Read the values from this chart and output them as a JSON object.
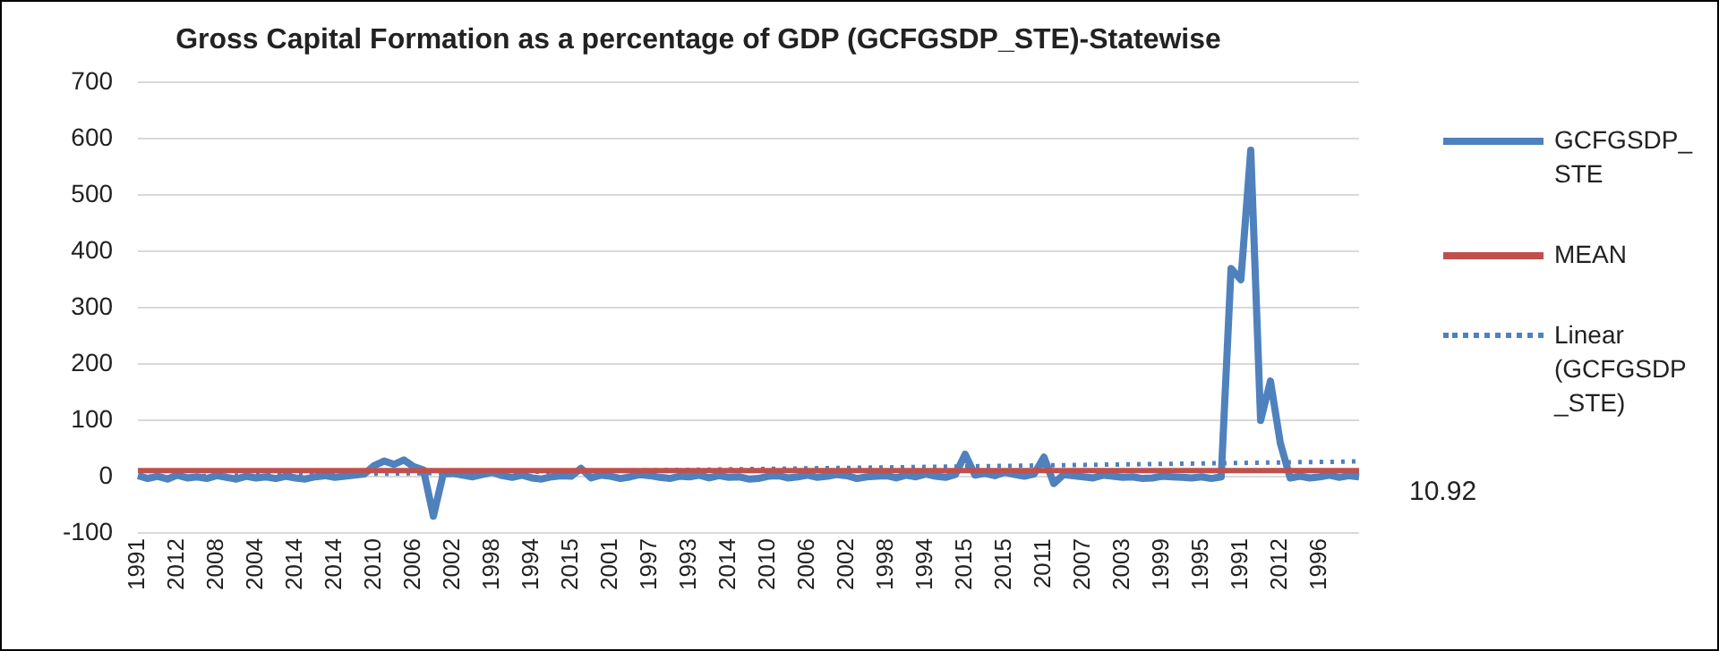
{
  "chart_data": {
    "type": "line",
    "title": "Gross Capital Formation as a percentage of GDP (GCFGSDP_STE)-Statewise",
    "categories": [
      "1991",
      null,
      null,
      null,
      "2012",
      null,
      null,
      null,
      "2008",
      null,
      null,
      null,
      "2004",
      null,
      null,
      null,
      "2014",
      null,
      null,
      null,
      "2014",
      null,
      null,
      null,
      "2010",
      null,
      null,
      null,
      "2006",
      null,
      null,
      null,
      "2002",
      null,
      null,
      null,
      "1998",
      null,
      null,
      null,
      "1994",
      null,
      null,
      null,
      "2015",
      null,
      null,
      null,
      "2001",
      null,
      null,
      null,
      "1997",
      null,
      null,
      null,
      "1993",
      null,
      null,
      null,
      "2014",
      null,
      null,
      null,
      "2010",
      null,
      null,
      null,
      "2006",
      null,
      null,
      null,
      "2002",
      null,
      null,
      null,
      "1998",
      null,
      null,
      null,
      "1994",
      null,
      null,
      null,
      "2015",
      null,
      null,
      null,
      "2015",
      null,
      null,
      null,
      "2011",
      null,
      null,
      null,
      "2007",
      null,
      null,
      null,
      "2003",
      null,
      null,
      null,
      "1999",
      null,
      null,
      null,
      "1995",
      null,
      null,
      null,
      "1991",
      null,
      null,
      null,
      "2012",
      null,
      null,
      null,
      "1996",
      null,
      null,
      null,
      null
    ],
    "series": [
      {
        "name": "GCFGSDP_STE",
        "color": "#4f81bd",
        "values": [
          2,
          -3,
          1,
          -4,
          3,
          -2,
          0,
          -3,
          2,
          -1,
          -4,
          1,
          -2,
          0,
          -3,
          1,
          -2,
          -4,
          0,
          2,
          -1,
          1,
          3,
          5,
          20,
          28,
          22,
          30,
          18,
          12,
          -70,
          5,
          6,
          3,
          0,
          4,
          8,
          2,
          -1,
          3,
          -2,
          -4,
          0,
          2,
          1,
          15,
          -2,
          3,
          1,
          -3,
          0,
          4,
          2,
          -1,
          -3,
          1,
          0,
          3,
          -2,
          2,
          -1,
          0,
          -4,
          -3,
          1,
          2,
          -2,
          0,
          3,
          -1,
          1,
          4,
          2,
          -3,
          0,
          1,
          2,
          -2,
          3,
          0,
          5,
          1,
          -1,
          4,
          40,
          3,
          6,
          2,
          8,
          4,
          1,
          5,
          35,
          -12,
          4,
          2,
          0,
          -2,
          3,
          1,
          -1,
          0,
          -3,
          -2,
          1,
          0,
          -1,
          -2,
          0,
          -3,
          0,
          370,
          350,
          580,
          100,
          170,
          60,
          -2,
          1,
          -2,
          0,
          3,
          -1,
          2,
          0
        ]
      },
      {
        "name": "Linear (GCFGSDP_STE)",
        "color": "#4f81bd",
        "line_style": "dotted",
        "values": [
          0,
          0.2,
          0.4,
          0.7,
          0.9,
          1.1,
          1.3,
          1.5,
          1.8,
          2,
          2.2,
          2.4,
          2.6,
          2.9,
          3.1,
          3.3,
          3.5,
          3.7,
          4,
          4.2,
          4.4,
          4.6,
          4.8,
          5.1,
          5.3,
          5.5,
          5.7,
          5.9,
          6.2,
          6.4,
          6.6,
          6.8,
          7,
          7.3,
          7.5,
          7.7,
          7.9,
          8.1,
          8.4,
          8.6,
          8.8,
          9,
          9.2,
          9.5,
          9.7,
          9.9,
          10.1,
          10.3,
          10.6,
          10.8,
          11,
          11.2,
          11.4,
          11.7,
          11.9,
          12.1,
          12.3,
          12.5,
          12.8,
          13,
          13.2,
          13.4,
          13.6,
          13.9,
          14.1,
          14.3,
          14.5,
          14.7,
          15,
          15.2,
          15.4,
          15.6,
          15.8,
          16.1,
          16.3,
          16.5,
          16.7,
          16.9,
          17.2,
          17.4,
          17.6,
          17.8,
          18,
          18.3,
          18.5,
          18.7,
          18.9,
          19.1,
          19.4,
          19.6,
          19.8,
          20,
          20.2,
          20.5,
          20.7,
          20.9,
          21.1,
          21.3,
          21.6,
          21.8,
          22,
          22.2,
          22.4,
          22.7,
          22.9,
          23.1,
          23.3,
          23.5,
          23.8,
          24,
          24.2,
          24.4,
          24.6,
          24.9,
          25.1,
          25.3,
          25.5,
          25.7,
          26,
          26.2,
          26.4,
          26.6,
          26.8,
          27.1,
          27.3
        ]
      }
    ],
    "ref_lines": [
      {
        "axis": "y",
        "value": 10.92,
        "label": "MEAN",
        "color": "#c0504d"
      }
    ],
    "annotations": [
      "10.92"
    ],
    "ylim": [
      -100,
      700
    ],
    "yticks": [
      -100,
      0,
      100,
      200,
      300,
      400,
      500,
      600,
      700
    ],
    "grid": "y",
    "legend": "right",
    "marker": "none"
  }
}
